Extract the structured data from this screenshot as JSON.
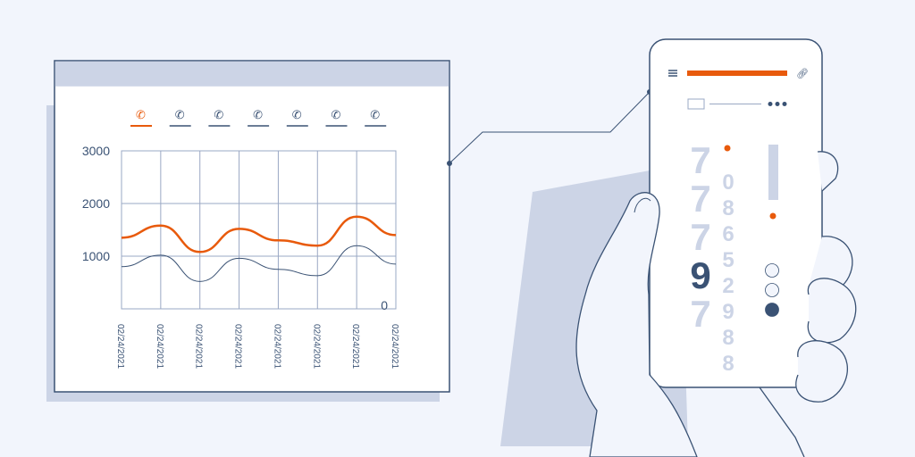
{
  "colors": {
    "accent": "#e85a0c",
    "ink": "#3a5274",
    "muted": "#ccd4e6",
    "background": "#f2f5fc"
  },
  "dashboard": {
    "tabs": [
      {
        "icon": "phone-icon",
        "active": true
      },
      {
        "icon": "phone-icon",
        "active": false
      },
      {
        "icon": "phone-icon",
        "active": false
      },
      {
        "icon": "phone-icon",
        "active": false
      },
      {
        "icon": "phone-icon",
        "active": false
      },
      {
        "icon": "phone-icon",
        "active": false
      },
      {
        "icon": "phone-icon",
        "active": false
      }
    ]
  },
  "chart_data": {
    "type": "line",
    "x": [
      "02/24/2021",
      "02/24/2021",
      "02/24/2021",
      "02/24/2021",
      "02/24/2021",
      "02/24/2021",
      "02/24/2021",
      "02/24/2021"
    ],
    "yticks": [
      "3000",
      "2000",
      "1000"
    ],
    "zero_label": "0",
    "ylim": [
      0,
      3000
    ],
    "grid": true,
    "series": [
      {
        "color": "#e85a0c",
        "values": [
          1350,
          1580,
          1080,
          1520,
          1300,
          1200,
          1750,
          1400
        ]
      },
      {
        "color": "#3a5274",
        "values": [
          800,
          1020,
          520,
          960,
          750,
          630,
          1200,
          850
        ]
      }
    ]
  },
  "phone": {
    "menu_icon": "hamburger-icon",
    "link_icon": "link-icon",
    "more_icon": "more-dots-icon",
    "digits_col1": [
      "7",
      "7",
      "7",
      "9",
      "7"
    ],
    "digits_col2": [
      "0",
      "8",
      "6",
      "5",
      "2",
      "9",
      "8",
      "8"
    ],
    "selected_digit_index": 3,
    "radio_options": [
      {
        "selected": false
      },
      {
        "selected": false
      },
      {
        "selected": true
      }
    ]
  }
}
